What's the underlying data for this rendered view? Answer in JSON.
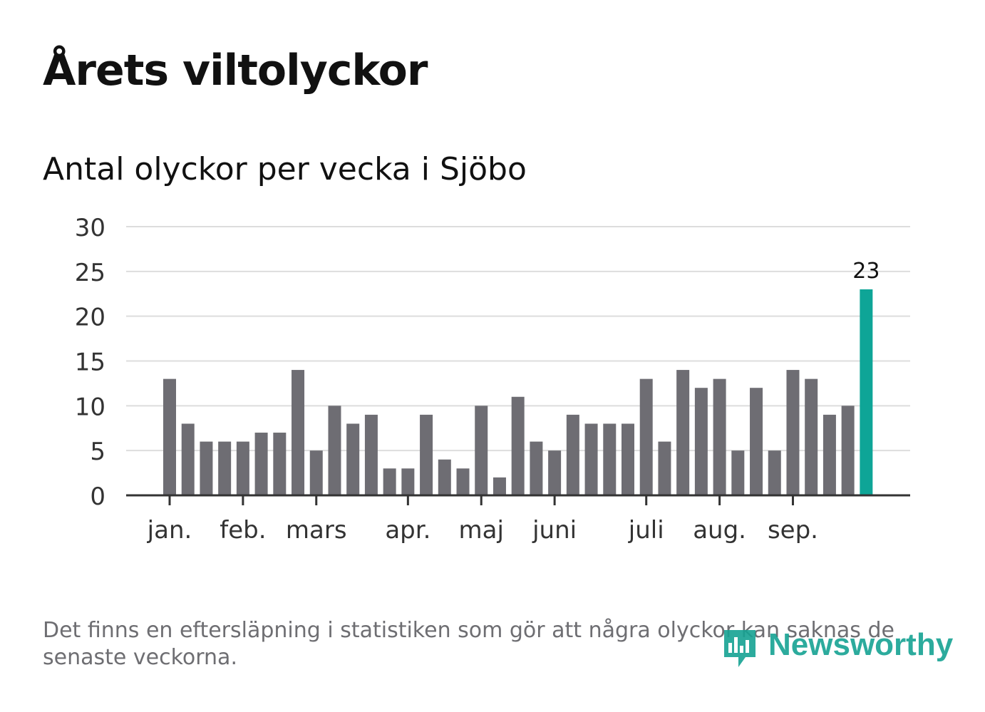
{
  "title": "Årets viltolyckor",
  "subtitle": "Antal olyckor per vecka i Sjöbo",
  "footnote": "Det finns en eftersläpning i statistiken som gör att några olyckor kan saknas de senaste veckorna.",
  "logo": {
    "text": "Newsworthy",
    "icon": "bar-chart-badge-icon"
  },
  "colors": {
    "bar": "#6e6d73",
    "highlight": "#0ea597",
    "grid": "#dddddd",
    "axis": "#333333",
    "text": "#333333",
    "brand": "#16a393"
  },
  "chart_data": {
    "type": "bar",
    "title": "Antal olyckor per vecka i Sjöbo",
    "xlabel": "",
    "ylabel": "",
    "ylim": [
      0,
      30
    ],
    "yticks": [
      0,
      5,
      10,
      15,
      20,
      25,
      30
    ],
    "grid": true,
    "values": [
      13,
      8,
      6,
      6,
      6,
      7,
      7,
      14,
      5,
      10,
      8,
      9,
      3,
      3,
      9,
      4,
      3,
      10,
      2,
      11,
      6,
      5,
      9,
      8,
      8,
      8,
      13,
      6,
      14,
      12,
      13,
      5,
      12,
      5,
      14,
      13,
      9,
      10,
      23
    ],
    "highlight_index": 38,
    "value_labels": [
      {
        "index": 38,
        "text": "23"
      }
    ],
    "month_labels": [
      {
        "label": "jan.",
        "week_index": 0
      },
      {
        "label": "feb.",
        "week_index": 4
      },
      {
        "label": "mars",
        "week_index": 8
      },
      {
        "label": "apr.",
        "week_index": 13
      },
      {
        "label": "maj",
        "week_index": 17
      },
      {
        "label": "juni",
        "week_index": 21
      },
      {
        "label": "juli",
        "week_index": 26
      },
      {
        "label": "aug.",
        "week_index": 30
      },
      {
        "label": "sep.",
        "week_index": 34
      }
    ]
  }
}
